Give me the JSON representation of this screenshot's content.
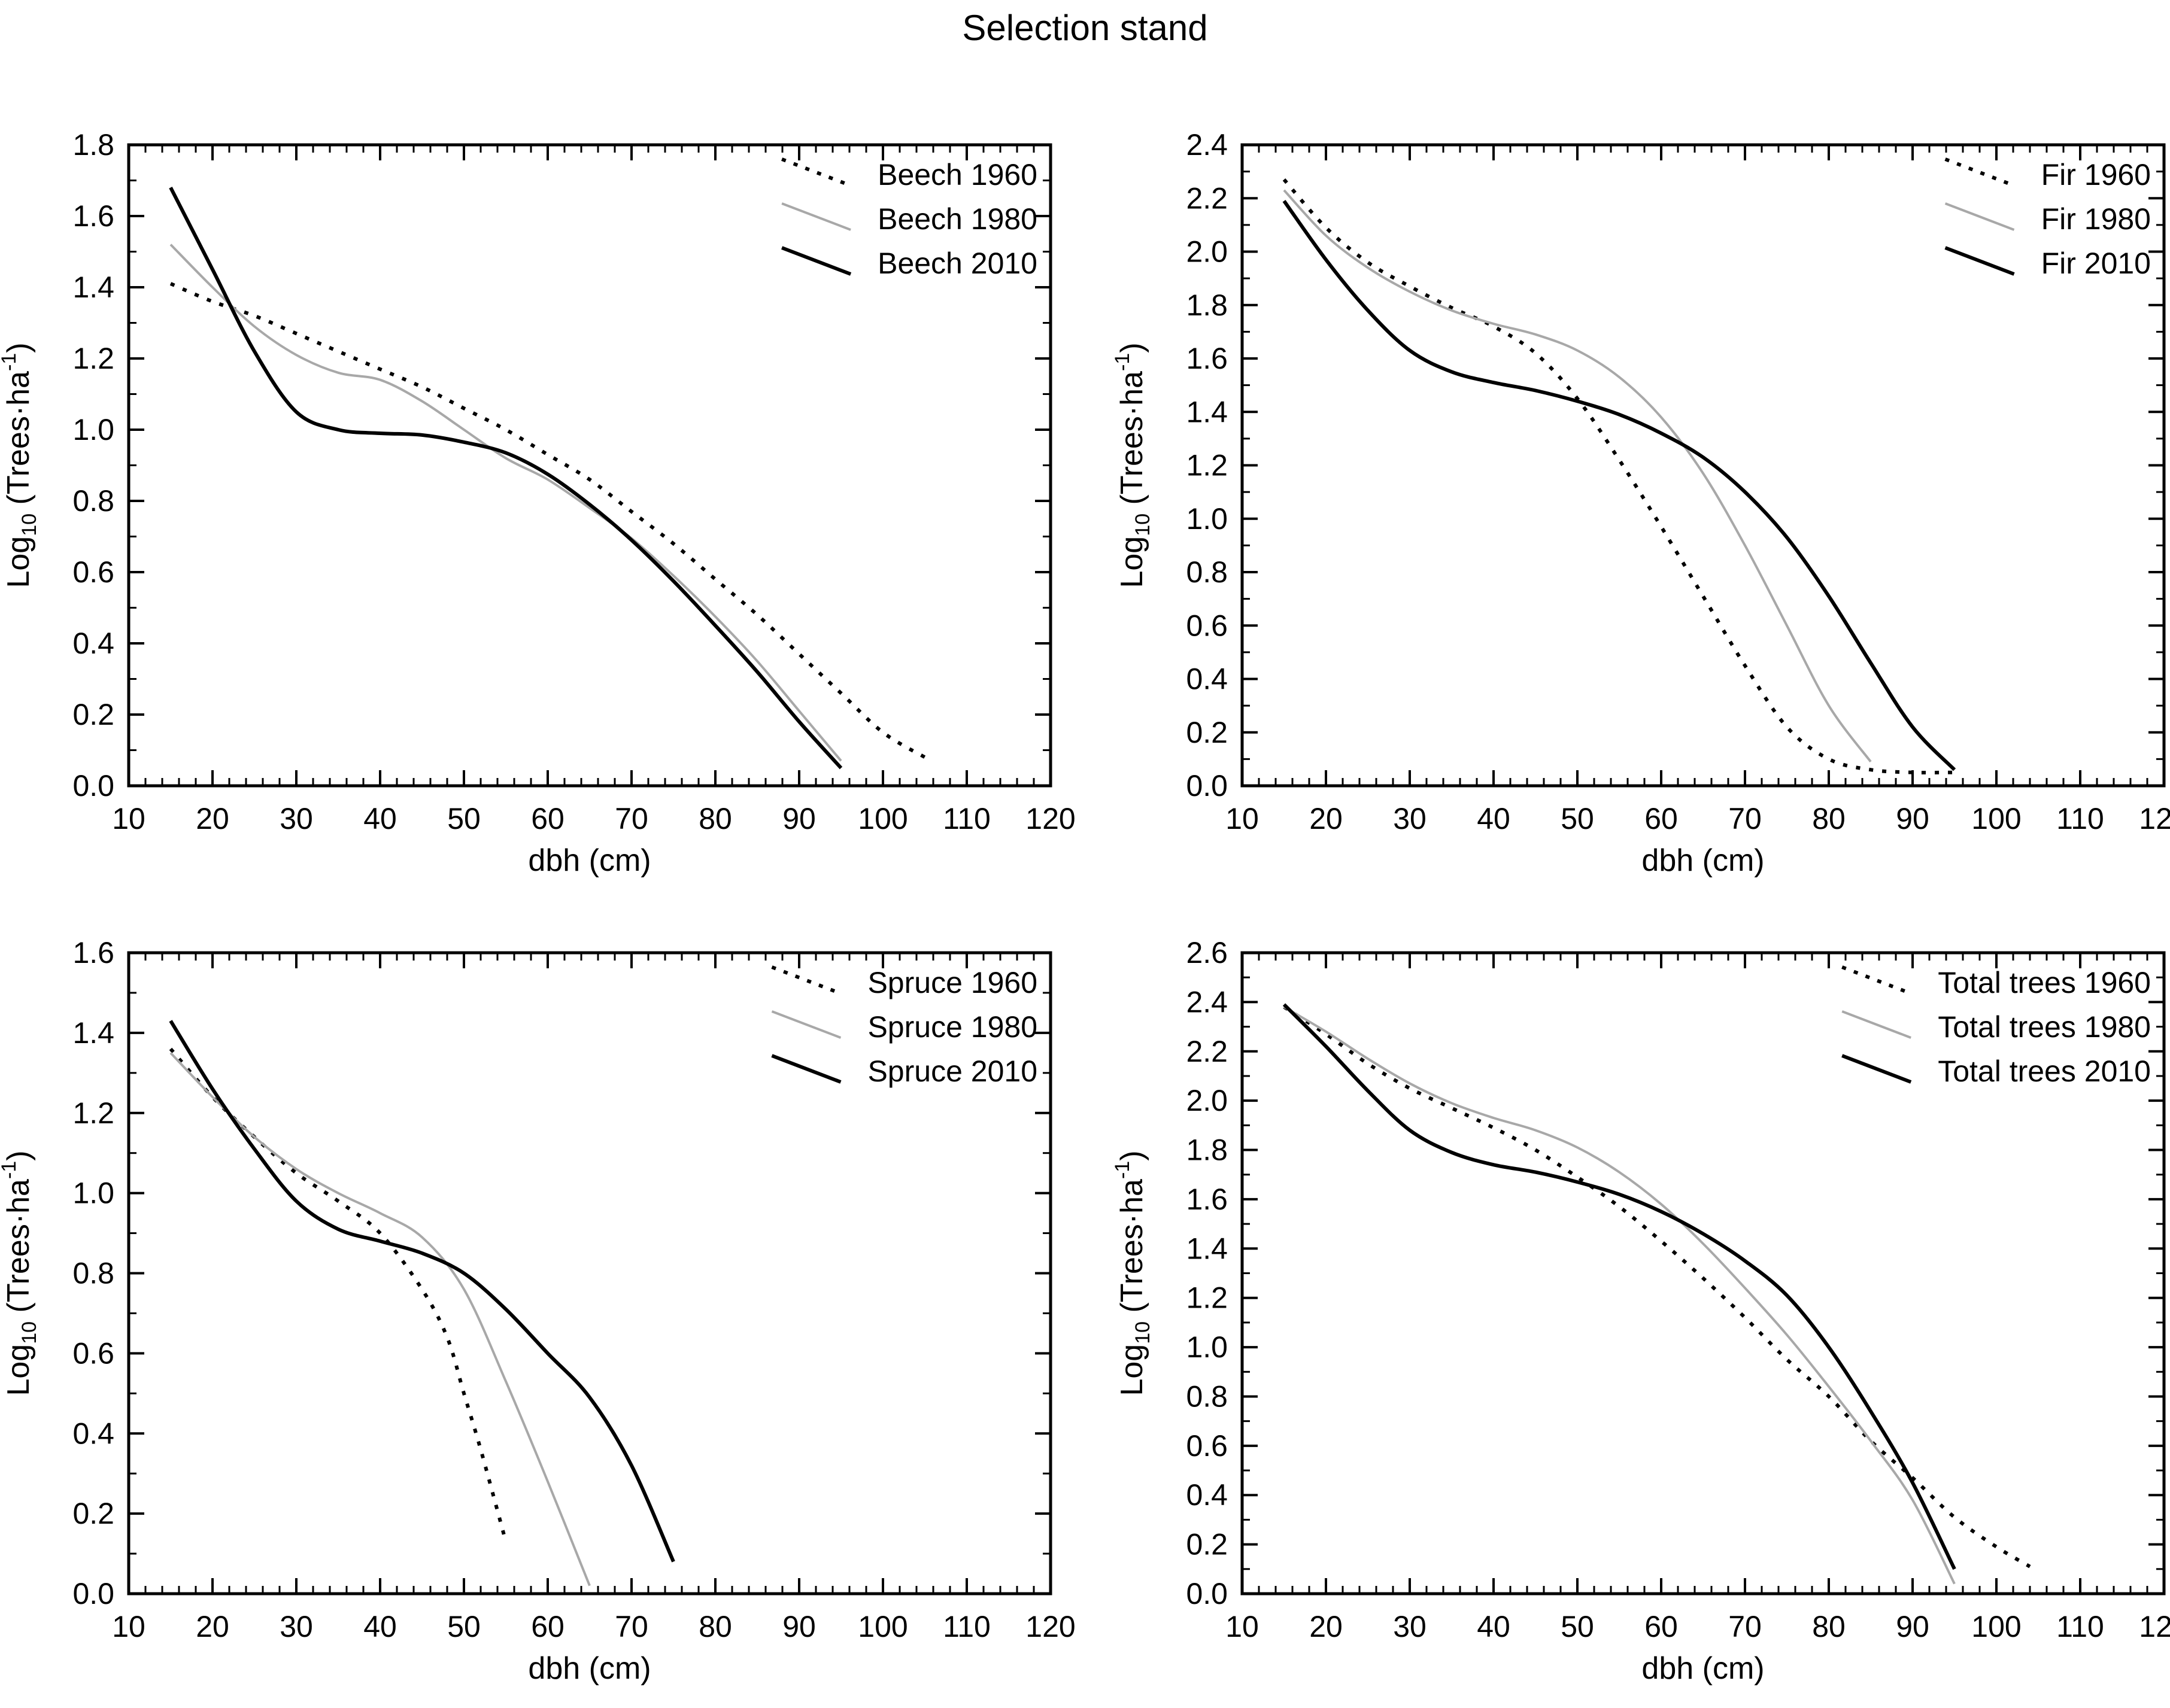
{
  "title": "Selection stand",
  "axes": {
    "xlabel": "dbh (cm)",
    "ylabel_parts": {
      "prefix": "Log",
      "sub": "10",
      "mid": " (Trees·ha",
      "sup": "-1",
      "suffix": ")"
    },
    "xlim": [
      10,
      120
    ],
    "x_major_step": 10,
    "x_minor_step": 2,
    "y_major_step": 0.2,
    "y_minor_step": 0.1,
    "legend_position": "top-right",
    "grid": "off"
  },
  "styles": {
    "black": "#000000",
    "gray": "#a8a8a8",
    "frame": "#000000",
    "background": "#ffffff"
  },
  "chart_data": [
    {
      "type": "line",
      "panel": "Beech",
      "position": "top-left",
      "xlabel": "dbh (cm)",
      "ylim": [
        0,
        1.8
      ],
      "xlim": [
        10,
        120
      ],
      "series": [
        {
          "name": "Beech 1960",
          "style": "dotted",
          "color": "#000000",
          "x": [
            15,
            20,
            25,
            30,
            35,
            40,
            45,
            50,
            55,
            60,
            65,
            70,
            75,
            80,
            85,
            90,
            95,
            100,
            105
          ],
          "y": [
            1.41,
            1.36,
            1.32,
            1.27,
            1.22,
            1.17,
            1.12,
            1.06,
            1.0,
            0.93,
            0.86,
            0.77,
            0.68,
            0.58,
            0.48,
            0.37,
            0.26,
            0.15,
            0.08
          ]
        },
        {
          "name": "Beech 1980",
          "style": "solid",
          "color": "#a8a8a8",
          "x": [
            15,
            20,
            25,
            30,
            35,
            40,
            45,
            50,
            55,
            60,
            65,
            70,
            75,
            80,
            85,
            90,
            95
          ],
          "y": [
            1.52,
            1.4,
            1.29,
            1.21,
            1.16,
            1.14,
            1.08,
            1.0,
            0.92,
            0.86,
            0.78,
            0.695,
            0.59,
            0.475,
            0.35,
            0.21,
            0.07
          ]
        },
        {
          "name": "Beech 2010",
          "style": "solid",
          "color": "#000000",
          "x": [
            15,
            20,
            25,
            30,
            35,
            40,
            45,
            50,
            55,
            60,
            65,
            70,
            75,
            80,
            85,
            90,
            95
          ],
          "y": [
            1.68,
            1.45,
            1.22,
            1.05,
            1.0,
            0.99,
            0.985,
            0.965,
            0.935,
            0.875,
            0.79,
            0.69,
            0.575,
            0.45,
            0.32,
            0.18,
            0.05
          ]
        }
      ]
    },
    {
      "type": "line",
      "panel": "Fir",
      "position": "top-right",
      "xlabel": "dbh (cm)",
      "ylim": [
        0,
        2.4
      ],
      "xlim": [
        10,
        120
      ],
      "series": [
        {
          "name": "Fir 1960",
          "style": "dotted",
          "color": "#000000",
          "x": [
            15,
            20,
            25,
            30,
            35,
            40,
            45,
            50,
            55,
            60,
            65,
            70,
            75,
            80,
            85,
            90,
            95
          ],
          "y": [
            2.27,
            2.09,
            1.96,
            1.87,
            1.79,
            1.72,
            1.62,
            1.45,
            1.22,
            0.97,
            0.71,
            0.45,
            0.22,
            0.1,
            0.06,
            0.05,
            0.05
          ]
        },
        {
          "name": "Fir 1980",
          "style": "solid",
          "color": "#a8a8a8",
          "x": [
            15,
            20,
            25,
            30,
            35,
            40,
            45,
            50,
            55,
            60,
            65,
            70,
            75,
            80,
            85
          ],
          "y": [
            2.23,
            2.06,
            1.94,
            1.85,
            1.78,
            1.73,
            1.69,
            1.63,
            1.53,
            1.38,
            1.17,
            0.9,
            0.6,
            0.3,
            0.09
          ]
        },
        {
          "name": "Fir 2010",
          "style": "solid",
          "color": "#000000",
          "x": [
            15,
            20,
            25,
            30,
            35,
            40,
            45,
            50,
            55,
            60,
            65,
            70,
            75,
            80,
            85,
            90,
            95
          ],
          "y": [
            2.19,
            1.97,
            1.78,
            1.63,
            1.55,
            1.51,
            1.48,
            1.44,
            1.39,
            1.32,
            1.23,
            1.1,
            0.93,
            0.71,
            0.46,
            0.22,
            0.06
          ]
        }
      ]
    },
    {
      "type": "line",
      "panel": "Spruce",
      "position": "bottom-left",
      "xlabel": "dbh (cm)",
      "ylim": [
        0,
        1.6
      ],
      "xlim": [
        10,
        120
      ],
      "series": [
        {
          "name": "Spruce 1960",
          "style": "dotted",
          "color": "#000000",
          "x": [
            15,
            20,
            25,
            30,
            35,
            40,
            45,
            48,
            50,
            52,
            55
          ],
          "y": [
            1.36,
            1.24,
            1.14,
            1.05,
            0.98,
            0.9,
            0.76,
            0.64,
            0.5,
            0.36,
            0.13
          ]
        },
        {
          "name": "Spruce 1980",
          "style": "solid",
          "color": "#a8a8a8",
          "x": [
            15,
            20,
            25,
            30,
            35,
            40,
            45,
            50,
            55,
            60,
            65
          ],
          "y": [
            1.35,
            1.24,
            1.14,
            1.06,
            1.0,
            0.95,
            0.89,
            0.76,
            0.53,
            0.28,
            0.02
          ]
        },
        {
          "name": "Spruce 2010",
          "style": "solid",
          "color": "#000000",
          "x": [
            15,
            20,
            25,
            30,
            35,
            40,
            45,
            50,
            55,
            60,
            65,
            70,
            75
          ],
          "y": [
            1.43,
            1.26,
            1.11,
            0.98,
            0.91,
            0.88,
            0.85,
            0.8,
            0.71,
            0.6,
            0.49,
            0.32,
            0.08
          ]
        }
      ]
    },
    {
      "type": "line",
      "panel": "Total trees",
      "position": "bottom-right",
      "xlabel": "dbh (cm)",
      "ylim": [
        0,
        2.6
      ],
      "xlim": [
        10,
        120
      ],
      "series": [
        {
          "name": "Total trees 1960",
          "style": "dotted",
          "color": "#000000",
          "x": [
            15,
            20,
            25,
            30,
            35,
            40,
            45,
            50,
            55,
            60,
            65,
            70,
            75,
            80,
            85,
            90,
            95,
            100,
            104
          ],
          "y": [
            2.38,
            2.27,
            2.15,
            2.05,
            1.97,
            1.89,
            1.8,
            1.69,
            1.57,
            1.43,
            1.28,
            1.12,
            0.95,
            0.8,
            0.62,
            0.47,
            0.31,
            0.19,
            0.11
          ]
        },
        {
          "name": "Total trees 1980",
          "style": "solid",
          "color": "#a8a8a8",
          "x": [
            15,
            20,
            25,
            30,
            35,
            40,
            45,
            50,
            55,
            60,
            65,
            70,
            75,
            80,
            85,
            90,
            95
          ],
          "y": [
            2.38,
            2.28,
            2.17,
            2.07,
            1.99,
            1.93,
            1.88,
            1.81,
            1.71,
            1.58,
            1.42,
            1.24,
            1.05,
            0.84,
            0.62,
            0.38,
            0.04
          ]
        },
        {
          "name": "Total trees 2010",
          "style": "solid",
          "color": "#000000",
          "x": [
            15,
            20,
            25,
            30,
            35,
            40,
            45,
            50,
            55,
            60,
            65,
            70,
            75,
            80,
            85,
            90,
            95
          ],
          "y": [
            2.39,
            2.22,
            2.04,
            1.88,
            1.79,
            1.74,
            1.71,
            1.67,
            1.62,
            1.55,
            1.46,
            1.35,
            1.21,
            1.0,
            0.74,
            0.45,
            0.1
          ]
        }
      ]
    }
  ]
}
